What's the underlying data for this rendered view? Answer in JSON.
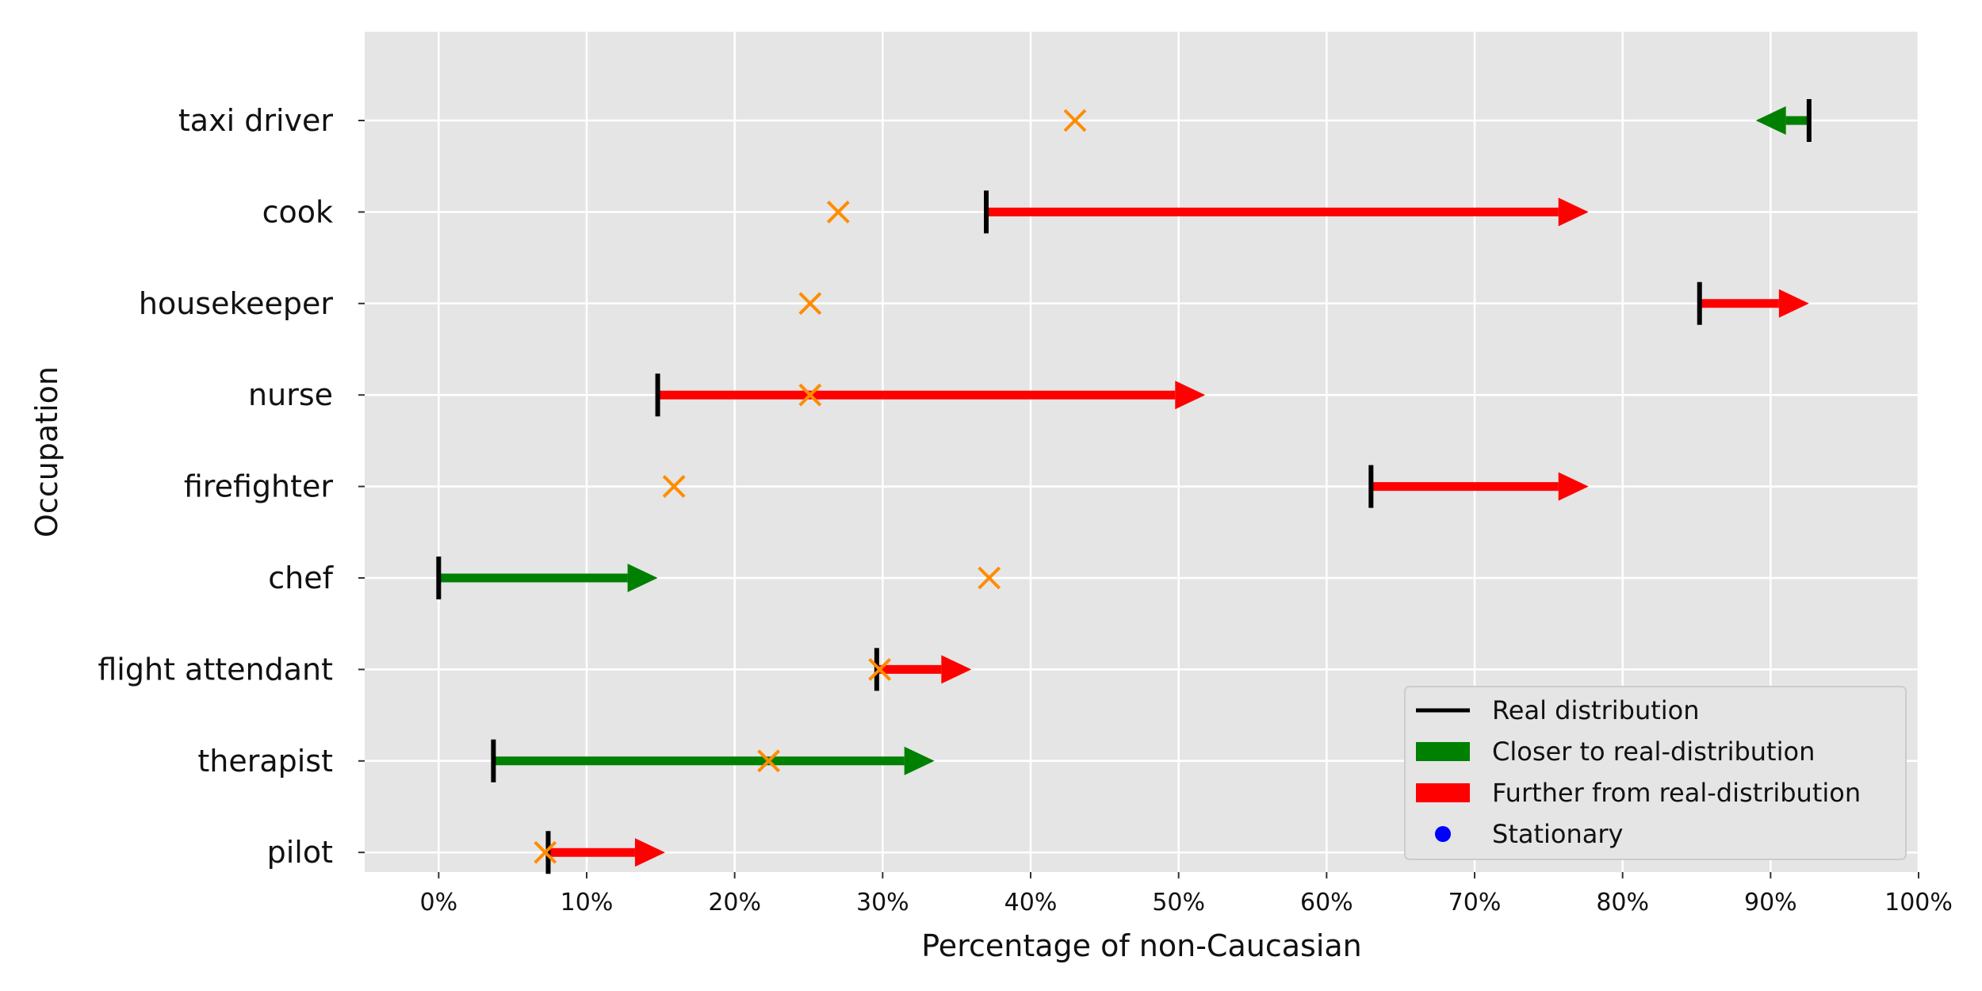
{
  "chart_data": {
    "type": "arrow-range",
    "xlabel": "Percentage of non-Caucasian",
    "ylabel": "Occupation",
    "xlim": [
      -5,
      100
    ],
    "x_ticks": [
      0,
      10,
      20,
      30,
      40,
      50,
      60,
      70,
      80,
      90,
      100
    ],
    "x_tick_labels": [
      "0%",
      "10%",
      "20%",
      "30%",
      "40%",
      "50%",
      "60%",
      "70%",
      "80%",
      "90%",
      "100%"
    ],
    "grid": true,
    "legend_position": "bottom-right",
    "colors": {
      "real": "#000000",
      "closer": "#008000",
      "further": "#ff0000",
      "stationary": "#0000ff",
      "marker": "#ff8c00",
      "background": "#e5e5e5",
      "grid": "#ffffff"
    },
    "legend": [
      {
        "key": "real",
        "label": "Real distribution",
        "kind": "line"
      },
      {
        "key": "closer",
        "label": "Closer to real-distribution",
        "kind": "patch"
      },
      {
        "key": "further",
        "label": "Further from real-distribution",
        "kind": "patch"
      },
      {
        "key": "stationary",
        "label": "Stationary",
        "kind": "dot"
      }
    ],
    "categories": [
      "pilot ",
      "therapist",
      "flight attendant",
      "chef",
      "firefighter",
      "nurse ",
      "housekeeper",
      "cook",
      "taxi driver"
    ],
    "series": [
      {
        "category": "pilot ",
        "start": 7.4,
        "end": 15.3,
        "direction": "further",
        "real": 7.4,
        "x_marker": 7.2
      },
      {
        "category": "therapist",
        "start": 3.7,
        "end": 33.5,
        "direction": "closer",
        "real": 3.7,
        "x_marker": 22.3
      },
      {
        "category": "flight attendant",
        "start": 29.6,
        "end": 36.0,
        "direction": "further",
        "real": 29.6,
        "x_marker": 29.8
      },
      {
        "category": "chef",
        "start": 0.0,
        "end": 14.8,
        "direction": "closer",
        "real": 0.0,
        "x_marker": 37.2
      },
      {
        "category": "firefighter",
        "start": 63.0,
        "end": 77.7,
        "direction": "further",
        "real": 63.0,
        "x_marker": 15.9
      },
      {
        "category": "nurse ",
        "start": 14.8,
        "end": 51.8,
        "direction": "further",
        "real": 14.8,
        "x_marker": 25.1
      },
      {
        "category": "housekeeper",
        "start": 85.2,
        "end": 92.6,
        "direction": "further",
        "real": 85.2,
        "x_marker": 25.1
      },
      {
        "category": "cook",
        "start": 37.0,
        "end": 77.7,
        "direction": "further",
        "real": 37.0,
        "x_marker": 27.0
      },
      {
        "category": "taxi driver",
        "start": 92.6,
        "end": 89.0,
        "direction": "closer",
        "real": 92.6,
        "x_marker": 43.0
      }
    ]
  }
}
